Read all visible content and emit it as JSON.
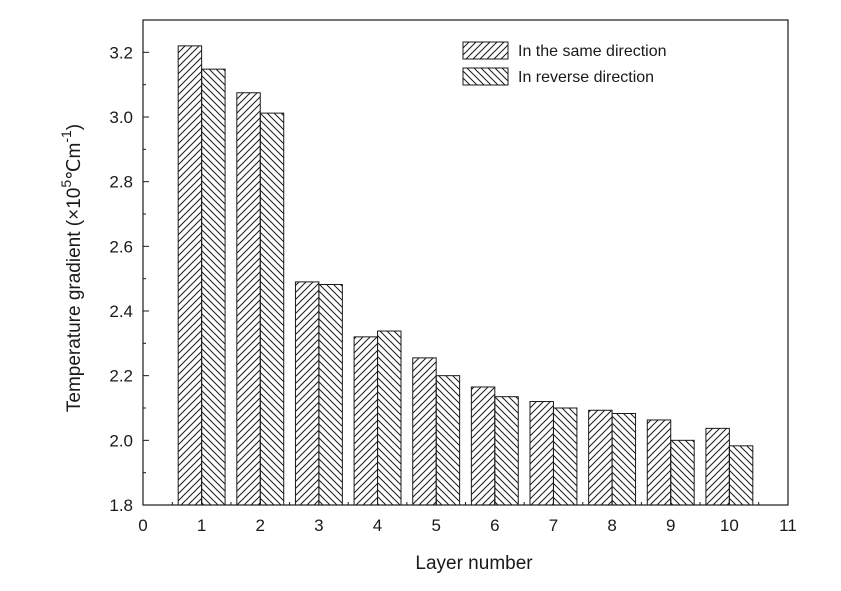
{
  "chart_data": {
    "type": "bar",
    "xlabel": "Layer number",
    "ylabel": {
      "prefix": "Temperature gradient (",
      "times": "×",
      "base": "10",
      "exp": "5",
      "unit": "℃m",
      "unit_exp": "-1",
      "suffix": ")"
    },
    "xlim": [
      0,
      11
    ],
    "ylim": [
      1.8,
      3.3
    ],
    "x_ticks": [
      0,
      1,
      2,
      3,
      4,
      5,
      6,
      7,
      8,
      9,
      10,
      11
    ],
    "y_ticks": [
      1.8,
      2.0,
      2.2,
      2.4,
      2.6,
      2.8,
      3.0,
      3.2
    ],
    "categories": [
      1,
      2,
      3,
      4,
      5,
      6,
      7,
      8,
      9,
      10
    ],
    "series": [
      {
        "name": "In the same direction",
        "hatch": "forward",
        "values": [
          3.22,
          3.075,
          2.49,
          2.32,
          2.255,
          2.165,
          2.12,
          2.093,
          2.063,
          2.037
        ]
      },
      {
        "name": "In reverse direction",
        "hatch": "backward",
        "values": [
          3.148,
          3.012,
          2.482,
          2.338,
          2.2,
          2.135,
          2.1,
          2.083,
          2.0,
          1.983
        ]
      }
    ],
    "legend_position": "top-right",
    "grid": false,
    "colors": {
      "axis": "#1a1a1a",
      "bar_fill": "#ffffff",
      "hatch": "#1a1a1a"
    }
  }
}
